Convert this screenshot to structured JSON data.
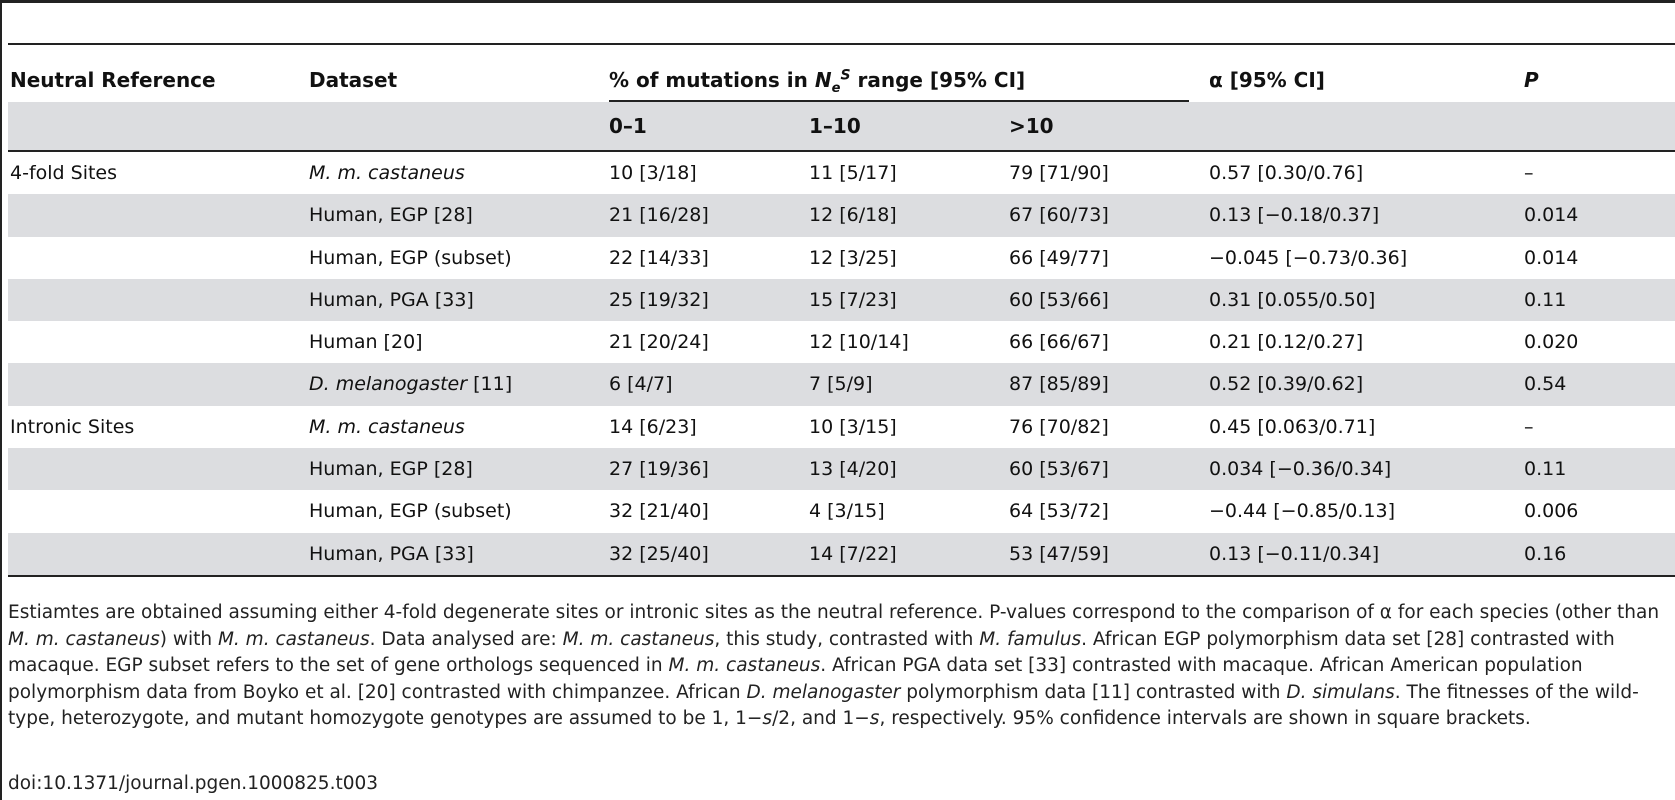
{
  "headers": {
    "neutral_reference": "Neutral Reference",
    "dataset": "Dataset",
    "pct_prefix": "% of mutations in ",
    "pct_N": "N",
    "pct_e": "e",
    "pct_s": "S",
    "pct_suffix": " range [95% CI]",
    "range_0_1": "0–1",
    "range_1_10": "1–10",
    "range_gt10": ">10",
    "alpha": "α [95% CI]",
    "p": "P"
  },
  "rows": [
    {
      "ref": "4-fold Sites",
      "dataset": "M. m. castaneus",
      "dataset_italic": true,
      "ref_suffix": "",
      "r01": "10 [3/18]",
      "r110": "11 [5/17]",
      "rgt10": "79 [71/90]",
      "alpha": "0.57 [0.30/0.76]",
      "p": "–"
    },
    {
      "ref": "",
      "dataset": "Human, EGP [28]",
      "dataset_italic": false,
      "r01": "21 [16/28]",
      "r110": "12 [6/18]",
      "rgt10": "67 [60/73]",
      "alpha": "0.13 [−0.18/0.37]",
      "p": "0.014"
    },
    {
      "ref": "",
      "dataset": "Human, EGP (subset)",
      "dataset_italic": false,
      "r01": "22 [14/33]",
      "r110": "12 [3/25]",
      "rgt10": "66 [49/77]",
      "alpha": "−0.045 [−0.73/0.36]",
      "p": "0.014"
    },
    {
      "ref": "",
      "dataset": "Human, PGA [33]",
      "dataset_italic": false,
      "r01": "25 [19/32]",
      "r110": "15 [7/23]",
      "rgt10": "60 [53/66]",
      "alpha": "0.31 [0.055/0.50]",
      "p": "0.11"
    },
    {
      "ref": "",
      "dataset": "Human [20]",
      "dataset_italic": false,
      "r01": "21 [20/24]",
      "r110": "12 [10/14]",
      "rgt10": "66 [66/67]",
      "alpha": "0.21 [0.12/0.27]",
      "p": "0.020"
    },
    {
      "ref": "",
      "dataset": "D. melanogaster",
      "dataset_suffix": " [11]",
      "dataset_italic": true,
      "r01": "6 [4/7]",
      "r110": "7 [5/9]",
      "rgt10": "87 [85/89]",
      "alpha": "0.52 [0.39/0.62]",
      "p": "0.54"
    },
    {
      "ref": "Intronic Sites",
      "dataset": "M. m. castaneus",
      "dataset_italic": true,
      "r01": "14 [6/23]",
      "r110": "10 [3/15]",
      "rgt10": "76 [70/82]",
      "alpha": "0.45 [0.063/0.71]",
      "p": "–"
    },
    {
      "ref": "",
      "dataset": "Human, EGP [28]",
      "dataset_italic": false,
      "r01": "27 [19/36]",
      "r110": "13 [4/20]",
      "rgt10": "60 [53/67]",
      "alpha": "0.034 [−0.36/0.34]",
      "p": "0.11"
    },
    {
      "ref": "",
      "dataset": "Human, EGP (subset)",
      "dataset_italic": false,
      "r01": "32 [21/40]",
      "r110": "4 [3/15]",
      "rgt10": "64 [53/72]",
      "alpha": "−0.44 [−0.85/0.13]",
      "p": "0.006"
    },
    {
      "ref": "",
      "dataset": "Human, PGA [33]",
      "dataset_italic": false,
      "r01": "32 [25/40]",
      "r110": "14 [7/22]",
      "rgt10": "53 [47/59]",
      "alpha": "0.13 [−0.11/0.34]",
      "p": "0.16"
    }
  ],
  "caption": {
    "t1": "Estiamtes are obtained assuming either 4-fold degenerate sites or intronic sites as the neutral reference. P-values correspond to the comparison of α for each species (other than ",
    "i1": "M. m. castaneus",
    "t2": ") with ",
    "i2": "M. m. castaneus",
    "t3": ". Data analysed are: ",
    "i3": "M. m. castaneus",
    "t4": ", this study, contrasted with ",
    "i4": "M. famulus",
    "t5": ". African EGP polymorphism data set [28] contrasted with macaque. EGP subset refers to the set of gene orthologs sequenced in ",
    "i5": "M. m. castaneus",
    "t6": ". African PGA data set [33] contrasted with macaque. African American population polymorphism data from Boyko et al. [20] contrasted with chimpanzee. African ",
    "i6": "D. melanogaster",
    "t7": " polymorphism data [11] contrasted with ",
    "i7": "D. simulans",
    "t8": ". The fitnesses of the wild-type, heterozygote, and mutant homozygote genotypes are assumed to be 1, 1−",
    "i8": "s",
    "t9": "/2, and 1−",
    "i9": "s",
    "t10": ", respectively. 95% confidence intervals are shown in square brackets."
  },
  "doi": "doi:10.1371/journal.pgen.1000825.t003"
}
